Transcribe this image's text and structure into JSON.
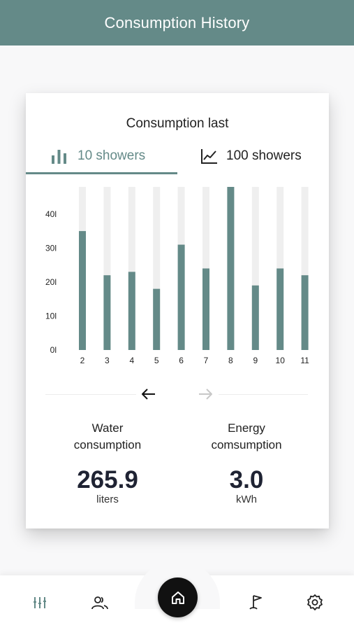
{
  "header": {
    "title": "Consumption History"
  },
  "card": {
    "heading": "Consumption last",
    "tabs": [
      {
        "label": "10 showers",
        "icon": "bar-chart-icon",
        "active": true
      },
      {
        "label": "100 showers",
        "icon": "line-chart-icon",
        "active": false
      }
    ]
  },
  "chart_data": {
    "type": "bar",
    "categories": [
      "2",
      "3",
      "4",
      "5",
      "6",
      "7",
      "8",
      "9",
      "10",
      "11"
    ],
    "values": [
      35,
      22,
      23,
      18,
      31,
      24,
      48,
      19,
      24,
      22
    ],
    "ylim": [
      0,
      48
    ],
    "yticks": [
      0,
      10,
      20,
      30,
      40
    ],
    "ytick_labels": [
      "0l",
      "10l",
      "20l",
      "30l",
      "40l"
    ],
    "colors": {
      "bar": "#648a88",
      "track": "#efefef"
    },
    "grid": false
  },
  "navigation": {
    "prev_icon": "arrow-left-icon",
    "next_icon": "arrow-right-icon",
    "next_disabled": true
  },
  "metrics": {
    "water": {
      "label_line1": "Water",
      "label_line2": "consumption",
      "value": "265.9",
      "unit": "liters"
    },
    "energy": {
      "label_line1": "Energy",
      "label_line2": "comsumption",
      "value": "3.0",
      "unit": "kWh"
    }
  },
  "bottom_nav": {
    "items": [
      "history-icon",
      "users-icon",
      "home-icon",
      "golf-flag-icon",
      "settings-icon"
    ]
  },
  "colors": {
    "accent": "#648a88",
    "dark": "#1f2333",
    "background": "#f8f8f9"
  }
}
